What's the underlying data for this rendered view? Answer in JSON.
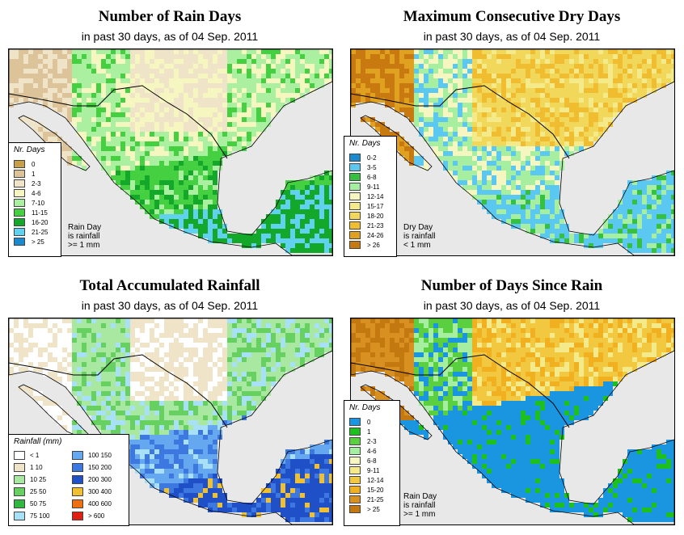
{
  "panels": [
    {
      "title": "Number of Rain Days",
      "subtitle": "in past 30 days, as of  04 Sep. 2011",
      "legend_title": "Nr. Days",
      "legend": [
        {
          "label": "0",
          "color": "#c8a04a"
        },
        {
          "label": "1",
          "color": "#dcc39a"
        },
        {
          "label": "2-3",
          "color": "#f0e4c8"
        },
        {
          "label": "4-6",
          "color": "#f6f6c0"
        },
        {
          "label": "7-10",
          "color": "#aaf0a0"
        },
        {
          "label": "11-15",
          "color": "#44d040"
        },
        {
          "label": "16-20",
          "color": "#14a82a"
        },
        {
          "label": "21-25",
          "color": "#60d2f0"
        },
        {
          "label": "> 25",
          "color": "#1a8ad0"
        }
      ],
      "note": [
        "Rain Day",
        "is rainfall",
        ">= 1 mm"
      ]
    },
    {
      "title": "Maximum Consecutive Dry Days",
      "subtitle": "in past 30 days, as of  04 Sep. 2011",
      "legend_title": "Nr. Days",
      "legend": [
        {
          "label": "0-2",
          "color": "#1a8ad0"
        },
        {
          "label": "3-5",
          "color": "#5ac8f0"
        },
        {
          "label": "6-8",
          "color": "#36c040"
        },
        {
          "label": "9-11",
          "color": "#a6eea0"
        },
        {
          "label": "12-14",
          "color": "#f6f6c0"
        },
        {
          "label": "15-17",
          "color": "#f4ea8a"
        },
        {
          "label": "18-20",
          "color": "#f2d85a"
        },
        {
          "label": "21-23",
          "color": "#f0bc30"
        },
        {
          "label": "24-26",
          "color": "#e0a020"
        },
        {
          "label": "> 26",
          "color": "#c87a10"
        }
      ],
      "note": [
        "Dry Day",
        "is rainfall",
        "< 1 mm"
      ]
    },
    {
      "title": "Total Accumulated Rainfall",
      "subtitle": "in past 30 days, as of  04 Sep. 2011",
      "legend_title": "Rainfall (mm)",
      "legend": [
        {
          "label": "< 1",
          "color": "#ffffff"
        },
        {
          "label": "1   10",
          "color": "#f0e4c8"
        },
        {
          "label": "10   25",
          "color": "#a8e8a0"
        },
        {
          "label": "25   50",
          "color": "#66d060"
        },
        {
          "label": "50   75",
          "color": "#30b840"
        },
        {
          "label": "75  100",
          "color": "#a8e0f8"
        },
        {
          "label": "100  150",
          "color": "#66a8f0"
        },
        {
          "label": "150  200",
          "color": "#3c78e0"
        },
        {
          "label": "200  300",
          "color": "#2050c8"
        },
        {
          "label": "300  400",
          "color": "#f0c030"
        },
        {
          "label": "400  600",
          "color": "#f07010"
        },
        {
          "label": "> 600",
          "color": "#e02010"
        }
      ],
      "note": []
    },
    {
      "title": "Number of Days Since Rain",
      "subtitle": "in past 30 days, as of  04 Sep. 2011",
      "legend_title": "Nr. Days",
      "legend": [
        {
          "label": "0",
          "color": "#1a96e0"
        },
        {
          "label": "1",
          "color": "#1ec020"
        },
        {
          "label": "2-3",
          "color": "#5ad040"
        },
        {
          "label": "4-6",
          "color": "#a6eea0"
        },
        {
          "label": "6-8",
          "color": "#f6f6c0"
        },
        {
          "label": "9-11",
          "color": "#f4ea8a"
        },
        {
          "label": "12-14",
          "color": "#f2c840"
        },
        {
          "label": "15-20",
          "color": "#f0b020"
        },
        {
          "label": "21-25",
          "color": "#d89020"
        },
        {
          "label": "> 25",
          "color": "#c47810"
        }
      ],
      "note": [
        "Rain Day",
        "is rainfall",
        ">= 1 mm"
      ]
    }
  ]
}
